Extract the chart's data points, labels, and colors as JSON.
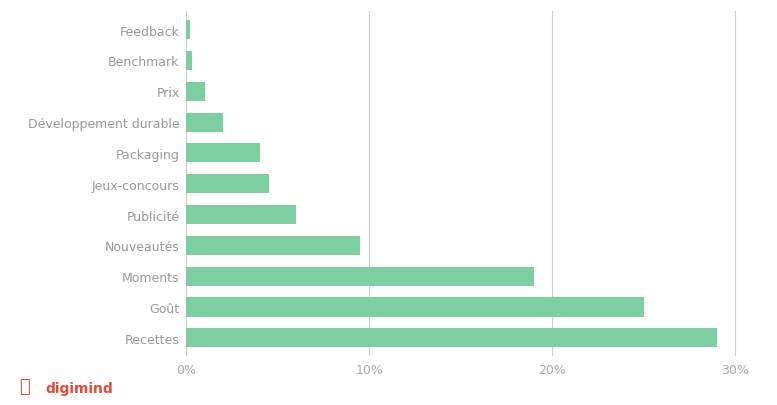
{
  "categories": [
    "Recettes",
    "Goût",
    "Moments",
    "Nouveautés",
    "Publicité",
    "Jeux-concours",
    "Packaging",
    "Développement durable",
    "Prix",
    "Benchmark",
    "Feedback"
  ],
  "values": [
    29.0,
    25.0,
    19.0,
    9.5,
    6.0,
    4.5,
    4.0,
    2.0,
    1.0,
    0.3,
    0.2
  ],
  "bar_color": "#7DCEA0",
  "background_color": "#ffffff",
  "gridline_color": "#d0d0d0",
  "label_color": "#999999",
  "tick_label_color": "#aaaaaa",
  "xlim": [
    0,
    31
  ],
  "xticks": [
    0,
    10,
    20,
    30
  ],
  "xtick_labels": [
    "0%",
    "10%",
    "20%",
    "30%"
  ],
  "bar_height": 0.62,
  "logo_color": "#e8483a",
  "figsize": [
    7.77,
    4.06
  ],
  "dpi": 100
}
